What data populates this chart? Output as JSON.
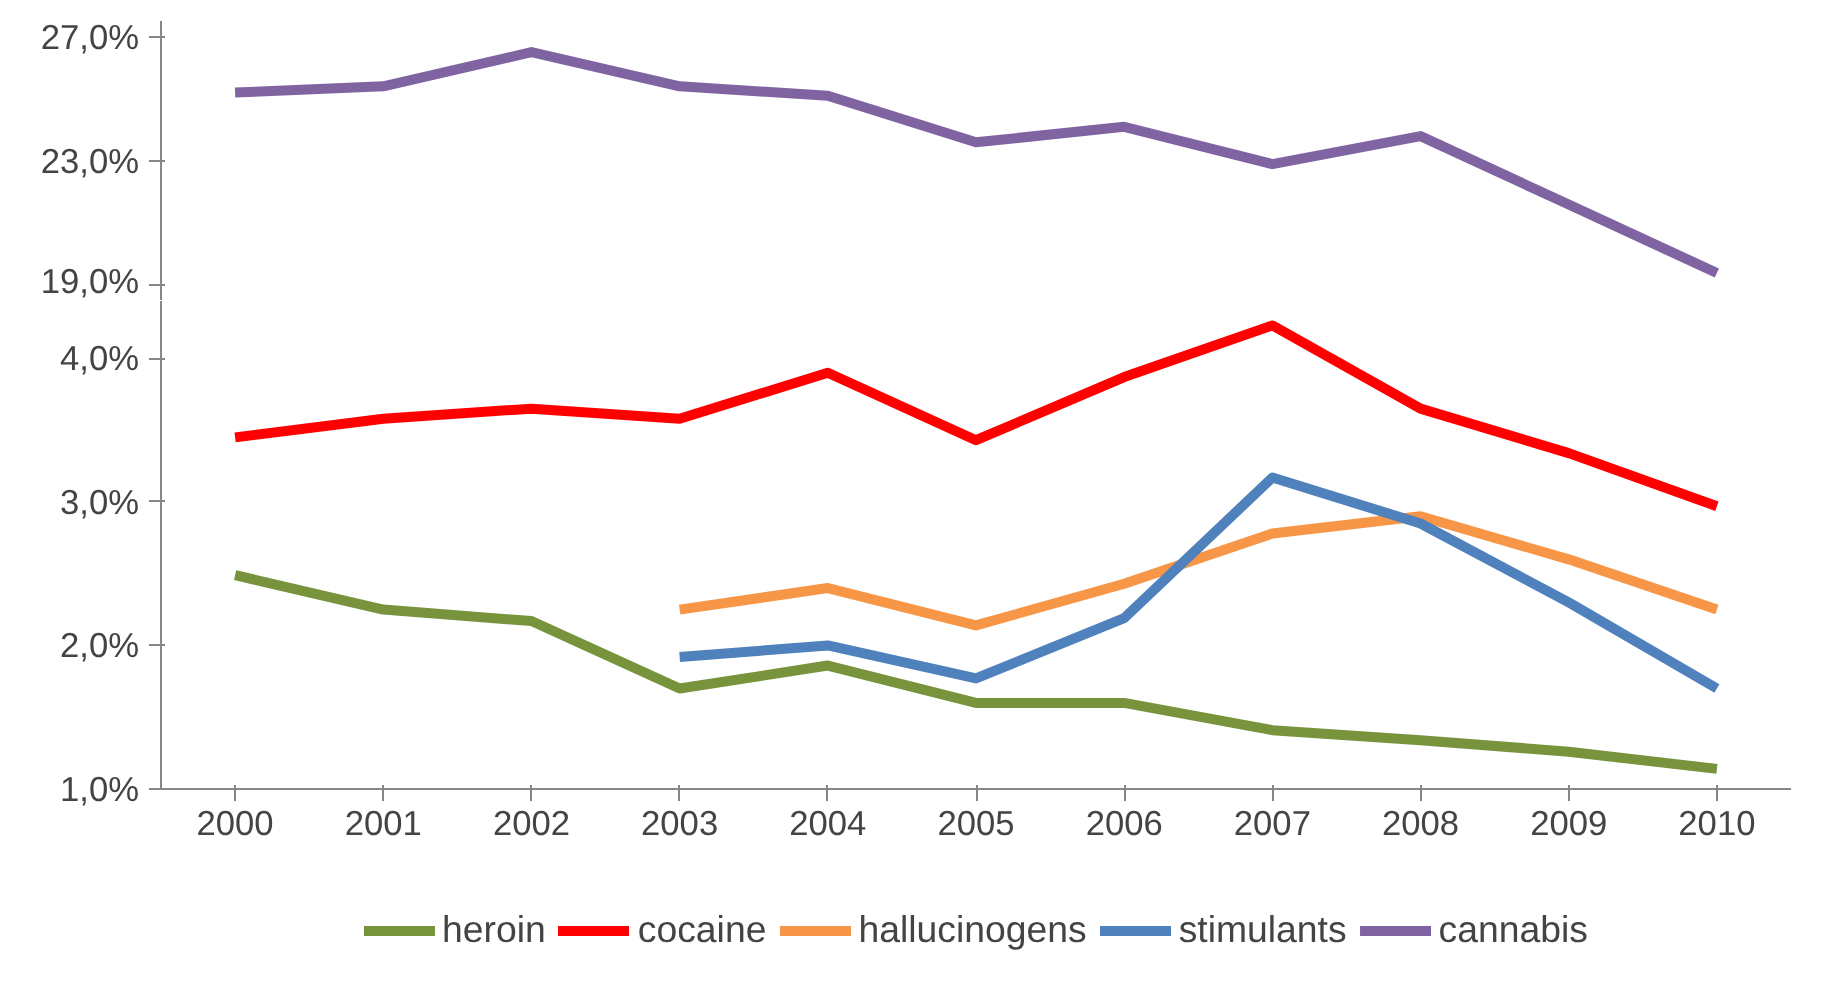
{
  "chart_data": [
    {
      "type": "line",
      "categories": [
        "2000",
        "2001",
        "2002",
        "2003",
        "2004",
        "2005",
        "2006",
        "2007",
        "2008",
        "2009",
        "2010"
      ],
      "series": [
        {
          "name": "cannabis",
          "color": "#8064a2",
          "values": [
            25.2,
            25.4,
            26.5,
            25.4,
            25.1,
            23.6,
            24.1,
            22.9,
            23.8,
            21.6,
            19.4
          ]
        }
      ],
      "ylim": [
        18.5,
        27.5
      ],
      "yticks": [
        {
          "value": 19,
          "label": "19,0%"
        },
        {
          "value": 23,
          "label": "23,0%"
        },
        {
          "value": 27,
          "label": "27,0%"
        }
      ],
      "tick_labels": "y",
      "grid": false,
      "legend": "bottom",
      "marker": "none",
      "line_style": "solid"
    },
    {
      "type": "line",
      "categories": [
        "2000",
        "2001",
        "2002",
        "2003",
        "2004",
        "2005",
        "2006",
        "2007",
        "2008",
        "2009",
        "2010"
      ],
      "series": [
        {
          "name": "heroin",
          "color": "#77933c",
          "values": [
            2.49,
            2.25,
            2.17,
            1.7,
            1.86,
            1.6,
            1.6,
            1.41,
            1.34,
            1.26,
            1.14
          ]
        },
        {
          "name": "cocaine",
          "color": "#ff0000",
          "values": [
            3.45,
            3.58,
            3.65,
            3.58,
            3.9,
            3.43,
            3.87,
            4.23,
            3.65,
            3.34,
            2.97
          ]
        },
        {
          "name": "hallucinogens",
          "color": "#f79646",
          "values": [
            null,
            null,
            null,
            2.25,
            2.4,
            2.14,
            2.43,
            2.78,
            2.9,
            2.6,
            2.25
          ]
        },
        {
          "name": "stimulants",
          "color": "#4f81bd",
          "values": [
            null,
            null,
            null,
            1.92,
            2.0,
            1.77,
            2.19,
            3.17,
            2.85,
            2.3,
            1.7
          ]
        }
      ],
      "ylim": [
        1,
        4.4
      ],
      "yticks": [
        {
          "value": 1,
          "label": "1,0%"
        },
        {
          "value": 2,
          "label": "2,0%"
        },
        {
          "value": 3,
          "label": "3,0%"
        },
        {
          "value": 4,
          "label": "4,0%"
        }
      ],
      "grid": false,
      "legend": "bottom",
      "marker": "none",
      "line_style": "solid"
    }
  ]
}
